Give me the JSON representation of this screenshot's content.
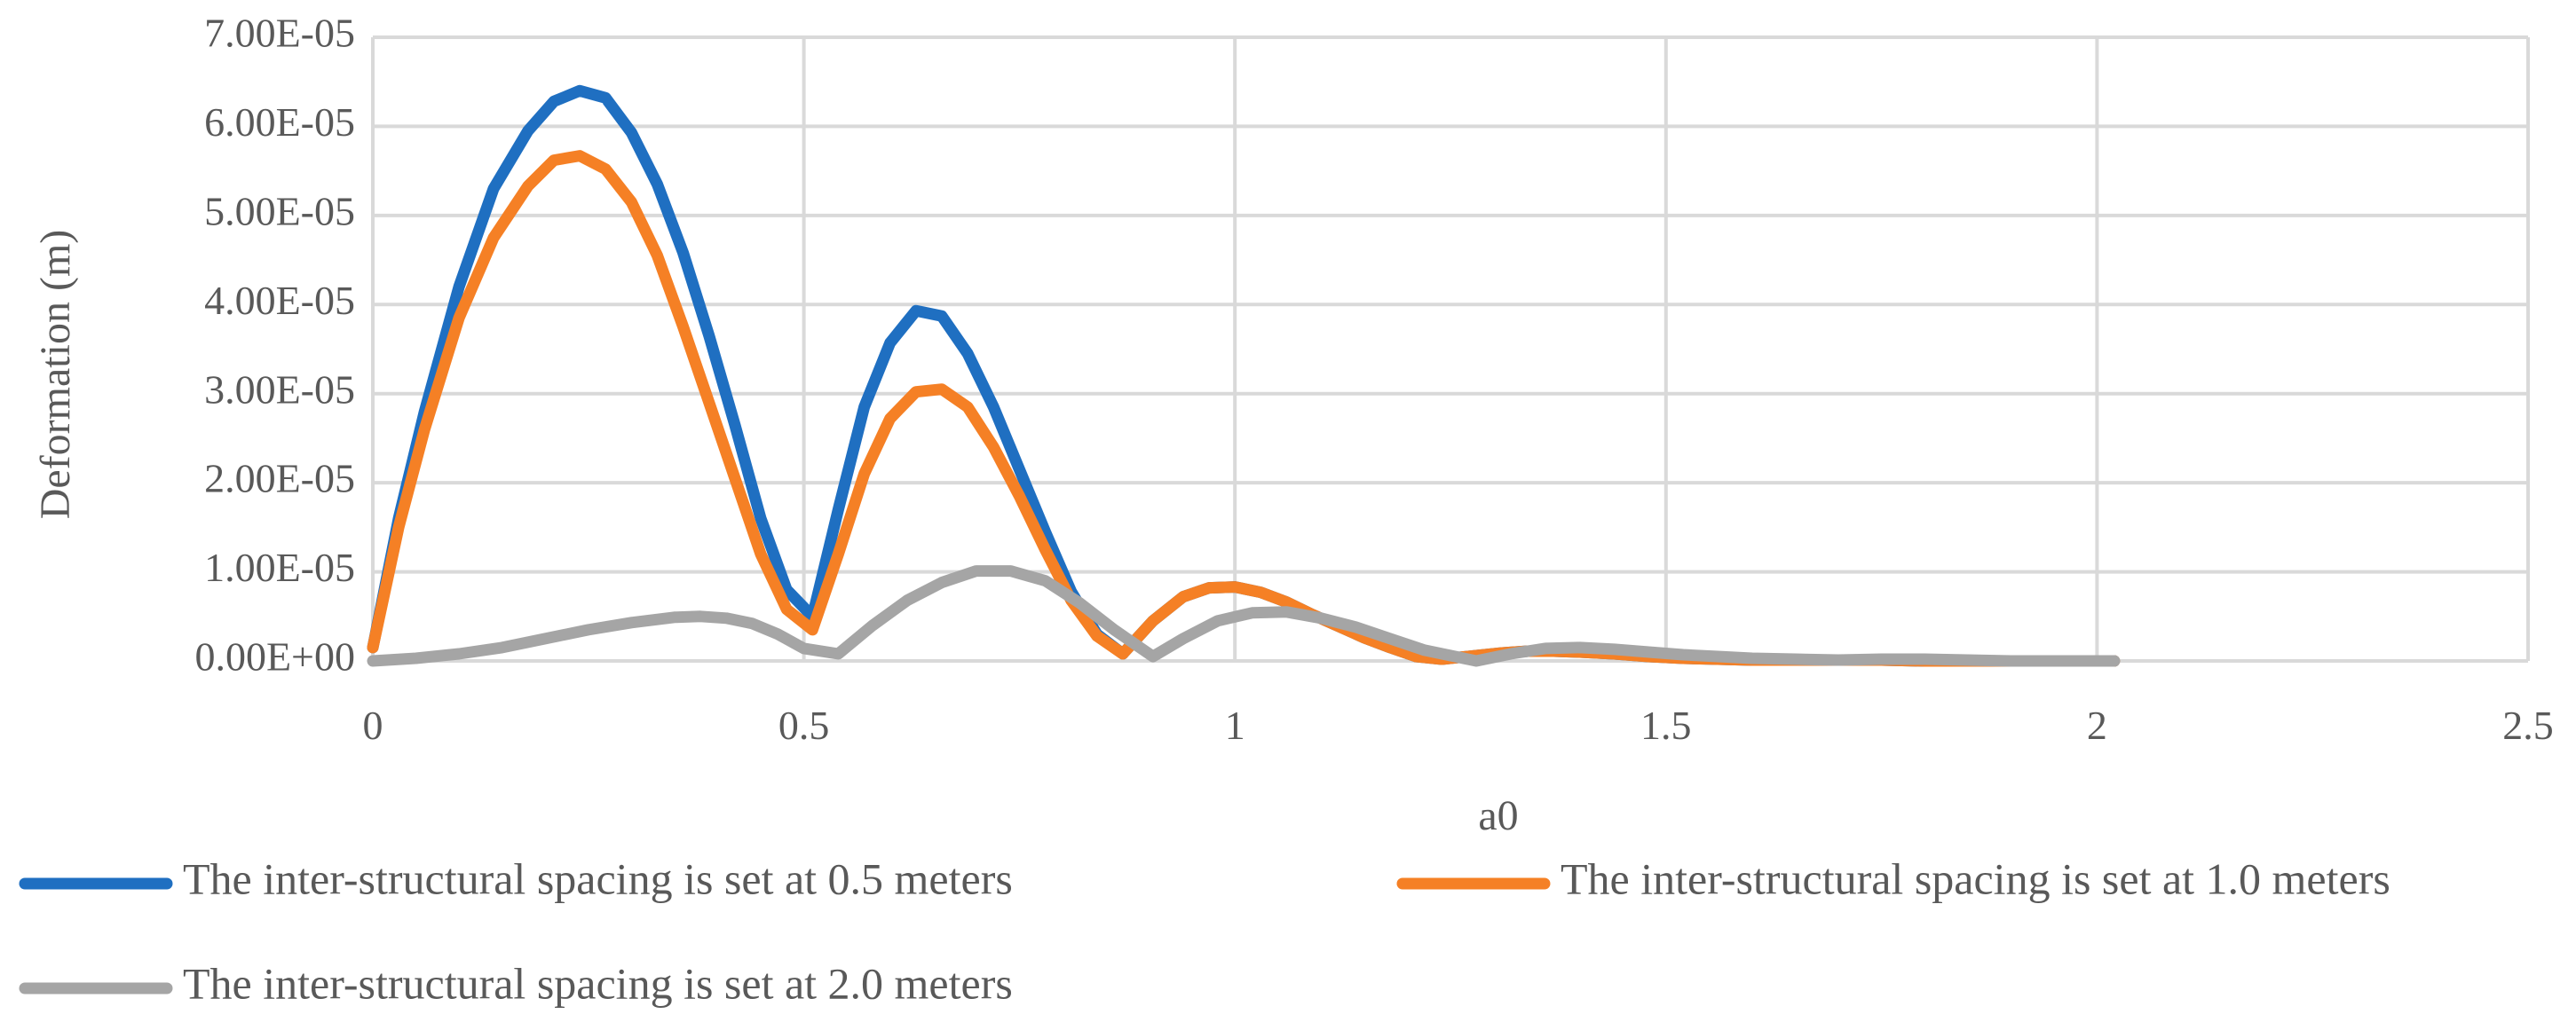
{
  "chart_data": {
    "type": "line",
    "title": "",
    "xlabel": "a0",
    "ylabel": "Deformation (m)",
    "xlim": [
      0,
      2.5
    ],
    "ylim": [
      0,
      7e-05
    ],
    "x_ticks": [
      "0",
      "0.5",
      "1",
      "1.5",
      "2",
      "2.5"
    ],
    "x_tick_values": [
      0,
      0.5,
      1,
      1.5,
      2,
      2.5
    ],
    "y_ticks": [
      "0.00E+00",
      "1.00E-05",
      "2.00E-05",
      "3.00E-05",
      "4.00E-05",
      "5.00E-05",
      "6.00E-05",
      "7.00E-05"
    ],
    "y_tick_values": [
      0,
      1e-05,
      2e-05,
      3e-05,
      4e-05,
      5e-05,
      6e-05,
      7e-05
    ],
    "grid": true,
    "legend_position": "bottom",
    "series": [
      {
        "name": "The inter-structural spacing is set at 0.5 meters",
        "color": "#1f6fc1",
        "x": [
          0,
          0.03,
          0.06,
          0.1,
          0.14,
          0.18,
          0.21,
          0.24,
          0.27,
          0.3,
          0.33,
          0.36,
          0.39,
          0.42,
          0.45,
          0.48,
          0.51,
          0.54,
          0.57,
          0.6,
          0.63,
          0.66,
          0.69,
          0.72,
          0.75,
          0.78,
          0.81,
          0.84,
          0.87,
          0.905,
          0.94,
          0.97,
          1.0,
          1.03,
          1.06,
          1.09,
          1.12,
          1.15,
          1.18,
          1.21,
          1.24,
          1.28,
          1.31,
          1.34,
          1.37,
          1.4,
          1.44,
          1.48,
          1.52,
          1.56,
          1.6,
          1.65,
          1.7,
          1.75,
          1.8,
          1.85,
          1.9,
          1.95,
          2.02
        ],
        "values": [
          1.5e-06,
          1.6e-05,
          2.8e-05,
          4.2e-05,
          5.3e-05,
          5.95e-05,
          6.28e-05,
          6.4e-05,
          6.32e-05,
          5.93e-05,
          5.35e-05,
          4.58e-05,
          3.65e-05,
          2.65e-05,
          1.6e-05,
          8e-06,
          5e-06,
          1.7e-05,
          2.85e-05,
          3.57e-05,
          3.93e-05,
          3.87e-05,
          3.45e-05,
          2.85e-05,
          2.15e-05,
          1.45e-05,
          7.8e-06,
          3e-06,
          8e-07,
          4.5e-06,
          7.2e-06,
          8.2e-06,
          8.3e-06,
          7.7e-06,
          6.6e-06,
          5.2e-06,
          3.9e-06,
          2.6e-06,
          1.5e-06,
          5e-07,
          2e-07,
          6e-07,
          9e-07,
          1.1e-06,
          1.1e-06,
          1e-06,
          8e-07,
          5e-07,
          3e-07,
          2e-07,
          1e-07,
          1e-07,
          1e-07,
          1e-07,
          0,
          0,
          0,
          0,
          0
        ]
      },
      {
        "name": "The inter-structural spacing is set at 1.0 meters",
        "color": "#f58025",
        "x": [
          0,
          0.03,
          0.06,
          0.1,
          0.14,
          0.18,
          0.21,
          0.24,
          0.27,
          0.3,
          0.33,
          0.36,
          0.39,
          0.42,
          0.45,
          0.48,
          0.51,
          0.54,
          0.57,
          0.6,
          0.63,
          0.66,
          0.69,
          0.72,
          0.75,
          0.78,
          0.81,
          0.84,
          0.87,
          0.905,
          0.94,
          0.97,
          1.0,
          1.03,
          1.06,
          1.09,
          1.12,
          1.15,
          1.18,
          1.21,
          1.24,
          1.28,
          1.31,
          1.34,
          1.37,
          1.4,
          1.44,
          1.48,
          1.52,
          1.56,
          1.6,
          1.65,
          1.7,
          1.75,
          1.8,
          1.85,
          1.9,
          1.95,
          2.02
        ],
        "values": [
          1.5e-06,
          1.5e-05,
          2.6e-05,
          3.85e-05,
          4.75e-05,
          5.33e-05,
          5.62e-05,
          5.67e-05,
          5.52e-05,
          5.15e-05,
          4.55e-05,
          3.75e-05,
          2.9e-05,
          2.05e-05,
          1.2e-05,
          5.8e-06,
          3.5e-06,
          1.2e-05,
          2.1e-05,
          2.72e-05,
          3.02e-05,
          3.05e-05,
          2.85e-05,
          2.4e-05,
          1.85e-05,
          1.25e-05,
          6.8e-06,
          2.8e-06,
          8e-07,
          4.5e-06,
          7.2e-06,
          8.2e-06,
          8.3e-06,
          7.7e-06,
          6.6e-06,
          5.2e-06,
          3.9e-06,
          2.6e-06,
          1.5e-06,
          5e-07,
          2e-07,
          6e-07,
          9e-07,
          1.1e-06,
          1.1e-06,
          1e-06,
          8e-07,
          5e-07,
          3e-07,
          2e-07,
          1e-07,
          1e-07,
          1e-07,
          1e-07,
          0,
          0,
          0,
          0,
          0
        ]
      },
      {
        "name": "The inter-structural spacing is set at 2.0 meters",
        "color": "#a5a5a5",
        "x": [
          0,
          0.05,
          0.1,
          0.15,
          0.2,
          0.25,
          0.3,
          0.35,
          0.38,
          0.41,
          0.44,
          0.47,
          0.5,
          0.54,
          0.58,
          0.62,
          0.66,
          0.7,
          0.74,
          0.78,
          0.82,
          0.86,
          0.905,
          0.94,
          0.98,
          1.02,
          1.06,
          1.1,
          1.14,
          1.18,
          1.22,
          1.28,
          1.32,
          1.36,
          1.4,
          1.44,
          1.48,
          1.52,
          1.56,
          1.6,
          1.65,
          1.7,
          1.75,
          1.8,
          1.85,
          1.9,
          1.95,
          2.02
        ],
        "values": [
          0,
          3e-07,
          8e-07,
          1.5e-06,
          2.5e-06,
          3.5e-06,
          4.3e-06,
          4.9e-06,
          5e-06,
          4.8e-06,
          4.2e-06,
          3e-06,
          1.4e-06,
          8e-07,
          4e-06,
          6.8e-06,
          8.8e-06,
          1.01e-05,
          1.01e-05,
          9e-06,
          6.5e-06,
          3.5e-06,
          5e-07,
          2.5e-06,
          4.5e-06,
          5.4e-06,
          5.5e-06,
          4.8e-06,
          3.8e-06,
          2.5e-06,
          1.2e-06,
          0,
          8e-07,
          1.4e-06,
          1.5e-06,
          1.3e-06,
          1e-06,
          7e-07,
          5e-07,
          3e-07,
          2e-07,
          1e-07,
          2e-07,
          2e-07,
          1e-07,
          0,
          0,
          0
        ]
      }
    ]
  }
}
